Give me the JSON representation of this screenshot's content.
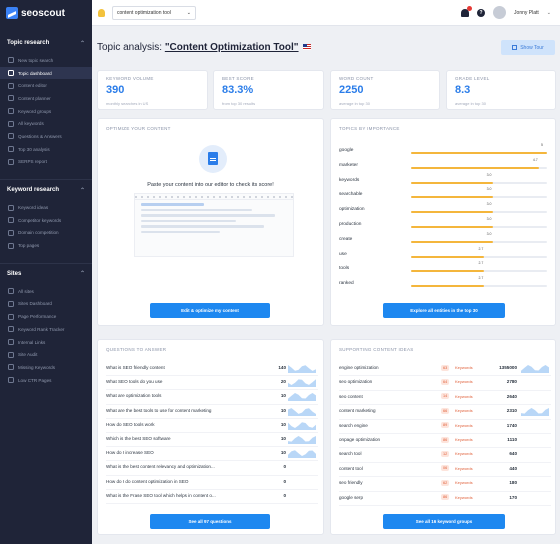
{
  "sidebar": {
    "logo": "seoscout",
    "sections": [
      {
        "title": "Topic research",
        "items": [
          {
            "label": "New topic search",
            "icon": "search-icon",
            "active": false
          },
          {
            "label": "Topic dashboard",
            "icon": "dashboard-icon",
            "active": true
          },
          {
            "label": "Content editor",
            "icon": "edit-icon",
            "active": false
          },
          {
            "label": "Content planner",
            "icon": "planner-icon",
            "active": false
          },
          {
            "label": "Keyword groups",
            "icon": "groups-icon",
            "active": false
          },
          {
            "label": "All keywords",
            "icon": "list-icon",
            "active": false
          },
          {
            "label": "Questions & Answers",
            "icon": "question-icon",
            "active": false
          },
          {
            "label": "Top 30 analysis",
            "icon": "chart-icon",
            "active": false
          },
          {
            "label": "SERPS report",
            "icon": "report-icon",
            "active": false
          }
        ]
      },
      {
        "title": "Keyword research",
        "items": [
          {
            "label": "Keyword ideas",
            "icon": "bulb-icon",
            "active": false
          },
          {
            "label": "Competitor keywords",
            "icon": "competitor-icon",
            "active": false
          },
          {
            "label": "Domain competition",
            "icon": "domain-icon",
            "active": false
          },
          {
            "label": "Top pages",
            "icon": "pages-icon",
            "active": false
          }
        ]
      },
      {
        "title": "Sites",
        "items": [
          {
            "label": "All sites",
            "icon": "sites-icon",
            "active": false
          },
          {
            "label": "Sites Dashboard",
            "icon": "dashboard-icon",
            "active": false
          },
          {
            "label": "Page Performance",
            "icon": "performance-icon",
            "active": false
          },
          {
            "label": "Keyword Rank Tracker",
            "icon": "tracker-icon",
            "active": false
          },
          {
            "label": "Internal Links",
            "icon": "link-icon",
            "active": false
          },
          {
            "label": "Site Audit",
            "icon": "audit-icon",
            "active": false
          },
          {
            "label": "Missing Keywords",
            "icon": "missing-icon",
            "active": false
          },
          {
            "label": "Low CTR Pages",
            "icon": "ctr-icon",
            "active": false
          }
        ]
      }
    ]
  },
  "topbar": {
    "topic_selector": "content optimization tool",
    "user_name": "Jonny Platt"
  },
  "header": {
    "prefix": "Topic analysis: ",
    "keyword": "\"Content Optimization Tool\"",
    "show_tour": "Show Tour"
  },
  "stats": [
    {
      "label": "KEYWORD VOLUME",
      "value": "390",
      "sub": "monthly searches in US"
    },
    {
      "label": "BEST SCORE",
      "value": "83.3%",
      "sub": "from top 30 results"
    },
    {
      "label": "WORD COUNT",
      "value": "2250",
      "sub": "average in top 30"
    },
    {
      "label": "GRADE LEVEL",
      "value": "8.3",
      "sub": "average in top 30"
    }
  ],
  "optimize": {
    "title": "OPTIMIZE YOUR CONTENT",
    "text": "Paste your content into our editor to check its score!",
    "button": "Edit & optimize my content"
  },
  "topics": {
    "title": "TOPICS BY IMPORTANCE",
    "button": "Explore all entities in the top 30",
    "accent": "#f4b63c",
    "items": [
      {
        "name": "google",
        "score": 5
      },
      {
        "name": "marketer",
        "score": 4.7
      },
      {
        "name": "keywords",
        "score": 3.0
      },
      {
        "name": "searchable",
        "score": 3.0
      },
      {
        "name": "optimization",
        "score": 3.0
      },
      {
        "name": "production",
        "score": 3.0
      },
      {
        "name": "create",
        "score": 3.0
      },
      {
        "name": "use",
        "score": 2.7
      },
      {
        "name": "tools",
        "score": 2.7
      },
      {
        "name": "ranked",
        "score": 2.7
      }
    ]
  },
  "questions": {
    "title": "QUESTIONS TO ANSWER",
    "button": "See all 97 questions",
    "items": [
      {
        "q": "What is SEO friendly content",
        "count": "140"
      },
      {
        "q": "What SEO tools do you use",
        "count": "20"
      },
      {
        "q": "What are optimization tools",
        "count": "10"
      },
      {
        "q": "What are the best tools to use for content marketing",
        "count": "10"
      },
      {
        "q": "How do SEO tools work",
        "count": "10"
      },
      {
        "q": "Which is the best SEO software",
        "count": "10"
      },
      {
        "q": "How do I increase SEO",
        "count": "10"
      },
      {
        "q": "What is the best content relevancy and optimization...",
        "count": "0"
      },
      {
        "q": "How do I do content optimization in SEO",
        "count": "0"
      },
      {
        "q": "What is the Frase SEO tool which helps in content o...",
        "count": "0"
      }
    ]
  },
  "keyword_groups": {
    "title": "SUPPORTING CONTENT IDEAS",
    "button": "See all 16 keyword groups",
    "keywords_label": "Keywords",
    "items": [
      {
        "k": "engine optimization",
        "n": "63",
        "vol": "1355000"
      },
      {
        "k": "seo optimization",
        "n": "64",
        "vol": "2780"
      },
      {
        "k": "seo content",
        "n": "14",
        "vol": "2640"
      },
      {
        "k": "content marketing",
        "n": "66",
        "vol": "2310"
      },
      {
        "k": "search engine",
        "n": "89",
        "vol": "1740"
      },
      {
        "k": "onpage optimization",
        "n": "86",
        "vol": "1110"
      },
      {
        "k": "search tool",
        "n": "12",
        "vol": "640"
      },
      {
        "k": "content tool",
        "n": "06",
        "vol": "440"
      },
      {
        "k": "seo friendly",
        "n": "62",
        "vol": "180"
      },
      {
        "k": "google serp",
        "n": "86",
        "vol": "170"
      }
    ]
  }
}
